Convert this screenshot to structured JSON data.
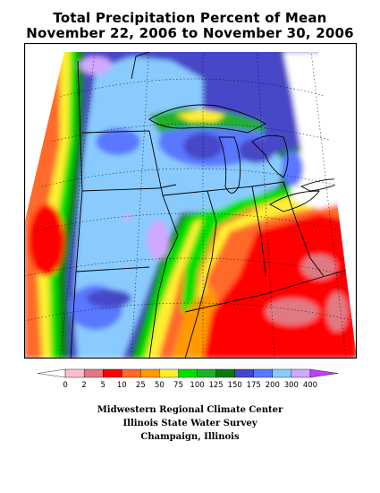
{
  "title": {
    "line1": "Total Precipitation Percent of Mean",
    "line2": "November 22, 2006 to November 30, 2006"
  },
  "legend": {
    "labels": [
      "0",
      "2",
      "5",
      "10",
      "25",
      "50",
      "75",
      "100",
      "125",
      "150",
      "175",
      "200",
      "300",
      "400"
    ],
    "colors": [
      "#ffffff",
      "#ffbfcf",
      "#e07a82",
      "#ff0000",
      "#ff6a2a",
      "#ff9a00",
      "#ffee33",
      "#00e000",
      "#20b02a",
      "#0a7a0a",
      "#4646c8",
      "#5a78ff",
      "#8acbff",
      "#d0a8ff",
      "#c040ff"
    ]
  },
  "credits": {
    "line1": "Midwestern Regional Climate Center",
    "line2": "Illinois State Water Survey",
    "line3": "Champaign, Illinois"
  }
}
